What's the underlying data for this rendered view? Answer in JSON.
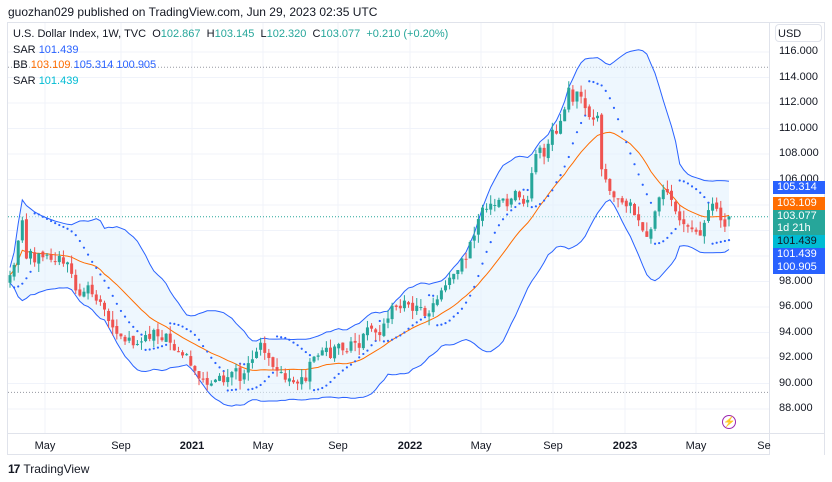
{
  "published": "guozhan029 published on TradingView.com, Jun 29, 2023 02:35 UTC",
  "legend": {
    "symbol": "U.S. Dollar Index, 1W, TVC",
    "open_label": "O",
    "open": "102.867",
    "high_label": "H",
    "high": "103.145",
    "low_label": "L",
    "low": "102.320",
    "close_label": "C",
    "close": "103.077",
    "change": "+0.210 (+0.20%)",
    "sar1_label": "SAR",
    "sar1_value": "101.439",
    "bb_label": "BB",
    "bb_basis": "103.109",
    "bb_upper": "105.314",
    "bb_lower": "100.905",
    "sar2_label": "SAR",
    "sar2_value": "101.439"
  },
  "price_axis": {
    "currency": "USD",
    "ticks": [
      "116.000",
      "114.000",
      "112.000",
      "110.000",
      "108.000",
      "106.000",
      "98.000",
      "96.000",
      "94.000",
      "92.000",
      "90.000",
      "88.000"
    ],
    "tags": {
      "bb_upper": "105.314",
      "bb_basis": "103.109",
      "last_price": "103.077",
      "countdown": "1d 21h",
      "sar2": "101.439",
      "sar1": "101.439",
      "bb_lower": "100.905"
    }
  },
  "time_axis": {
    "ticks": [
      {
        "label": "May",
        "bold": false
      },
      {
        "label": "Sep",
        "bold": false
      },
      {
        "label": "2021",
        "bold": true
      },
      {
        "label": "May",
        "bold": false
      },
      {
        "label": "Sep",
        "bold": false
      },
      {
        "label": "2022",
        "bold": true
      },
      {
        "label": "May",
        "bold": false
      },
      {
        "label": "Sep",
        "bold": false
      },
      {
        "label": "2023",
        "bold": true
      },
      {
        "label": "May",
        "bold": false
      },
      {
        "label": "Se",
        "bold": false
      }
    ]
  },
  "footer": {
    "brand_mark": "17",
    "brand": "TradingView"
  },
  "colors": {
    "up": "#26a69a",
    "down": "#ef5350",
    "bb_band": "#2962ff",
    "bb_basis": "#ff6d00",
    "sar": "#2962ff",
    "sar2": "#00bcd4",
    "fill": "#e3f2fd"
  },
  "chart_data": {
    "type": "candlestick",
    "title": "U.S. Dollar Index, 1W, TVC",
    "ylabel": "USD",
    "ylim": [
      86.5,
      117.5
    ],
    "interval": "1W",
    "indicators": [
      "Bollinger Bands (basis 103.109, upper 105.314, lower 100.905)",
      "Parabolic SAR 101.439"
    ],
    "closes": [
      98.5,
      99.3,
      101.2,
      102.8,
      99.8,
      100.4,
      99.5,
      100.2,
      99.9,
      100.1,
      99.7,
      99.6,
      100.0,
      99.4,
      99.5,
      98.6,
      97.3,
      96.9,
      97.2,
      97.7,
      97.0,
      96.5,
      96.4,
      95.8,
      94.9,
      94.4,
      93.9,
      93.7,
      93.3,
      93.6,
      93.0,
      93.1,
      93.3,
      93.8,
      93.5,
      94.2,
      93.7,
      93.4,
      93.9,
      93.2,
      92.6,
      92.5,
      92.2,
      92.3,
      91.4,
      91.0,
      90.4,
      90.3,
      89.9,
      90.0,
      90.3,
      90.6,
      90.1,
      90.5,
      90.9,
      91.2,
      90.2,
      90.8,
      91.6,
      91.9,
      92.5,
      93.2,
      92.4,
      92.0,
      91.3,
      91.0,
      90.9,
      90.3,
      90.4,
      90.1,
      90.0,
      90.5,
      90.2,
      91.7,
      92.1,
      92.2,
      92.6,
      92.8,
      92.0,
      92.9,
      93.1,
      92.6,
      92.5,
      93.3,
      93.2,
      92.8,
      93.9,
      94.4,
      94.3,
      94.0,
      93.8,
      94.7,
      95.1,
      96.1,
      96.0,
      95.9,
      96.5,
      96.2,
      95.7,
      96.1,
      96.0,
      95.3,
      95.5,
      96.3,
      96.6,
      97.3,
      97.7,
      98.3,
      98.6,
      98.9,
      99.8,
      99.7,
      101.1,
      101.6,
      102.9,
      103.8,
      103.7,
      104.1,
      104.0,
      104.4,
      104.5,
      103.9,
      104.5,
      105.1,
      104.6,
      104.1,
      104.4,
      106.5,
      108.0,
      108.5,
      107.8,
      108.8,
      109.9,
      109.6,
      110.6,
      111.5,
      113.2,
      112.1,
      112.9,
      112.5,
      111.6,
      110.9,
      110.7,
      111.0,
      106.8,
      106.0,
      105.1,
      104.6,
      104.5,
      104.2,
      103.9,
      104.2,
      103.2,
      102.8,
      102.0,
      101.5,
      102.1,
      103.5,
      104.6,
      105.2,
      105.0,
      104.4,
      103.5,
      102.8,
      102.5,
      102.3,
      102.1,
      101.9,
      101.6,
      102.6,
      103.6,
      104.1,
      103.7,
      102.8,
      102.3,
      103.1
    ],
    "last": {
      "open": 102.867,
      "high": 103.145,
      "low": 102.32,
      "close": 103.077
    }
  }
}
